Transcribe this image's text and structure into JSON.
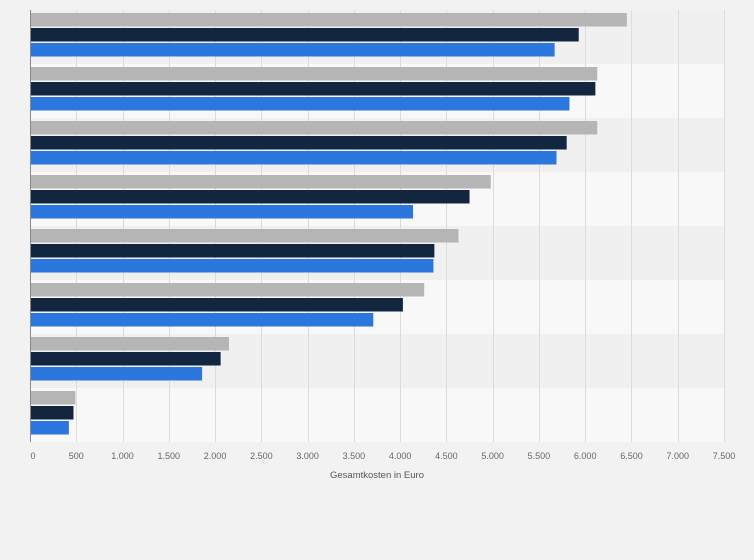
{
  "chart_data": {
    "type": "bar",
    "orientation": "horizontal",
    "xlabel": "Gesamtkosten in Euro",
    "xlim": [
      0,
      7500
    ],
    "xticks": [
      0,
      500,
      1000,
      1500,
      2000,
      2500,
      3000,
      3500,
      4000,
      4500,
      5000,
      5500,
      6000,
      6500,
      7000,
      7500
    ],
    "xtick_labels": [
      "0",
      "500",
      "1.000",
      "1.500",
      "2.000",
      "2.500",
      "3.000",
      "3.500",
      "4.000",
      "4.500",
      "5.000",
      "5.500",
      "6.000",
      "6.500",
      "7.000",
      "7.500"
    ],
    "grid": true,
    "legend": "none",
    "category_count": 8,
    "series": [
      {
        "color": "#b5b5b5",
        "values": [
          6450,
          6130,
          6130,
          4980,
          4630,
          4260,
          2150,
          490
        ]
      },
      {
        "color": "#13263f",
        "values": [
          5930,
          6110,
          5800,
          4750,
          4370,
          4030,
          2060,
          470
        ]
      },
      {
        "color": "#2c77de",
        "values": [
          5670,
          5830,
          5690,
          4140,
          4360,
          3710,
          1860,
          420
        ]
      }
    ]
  }
}
